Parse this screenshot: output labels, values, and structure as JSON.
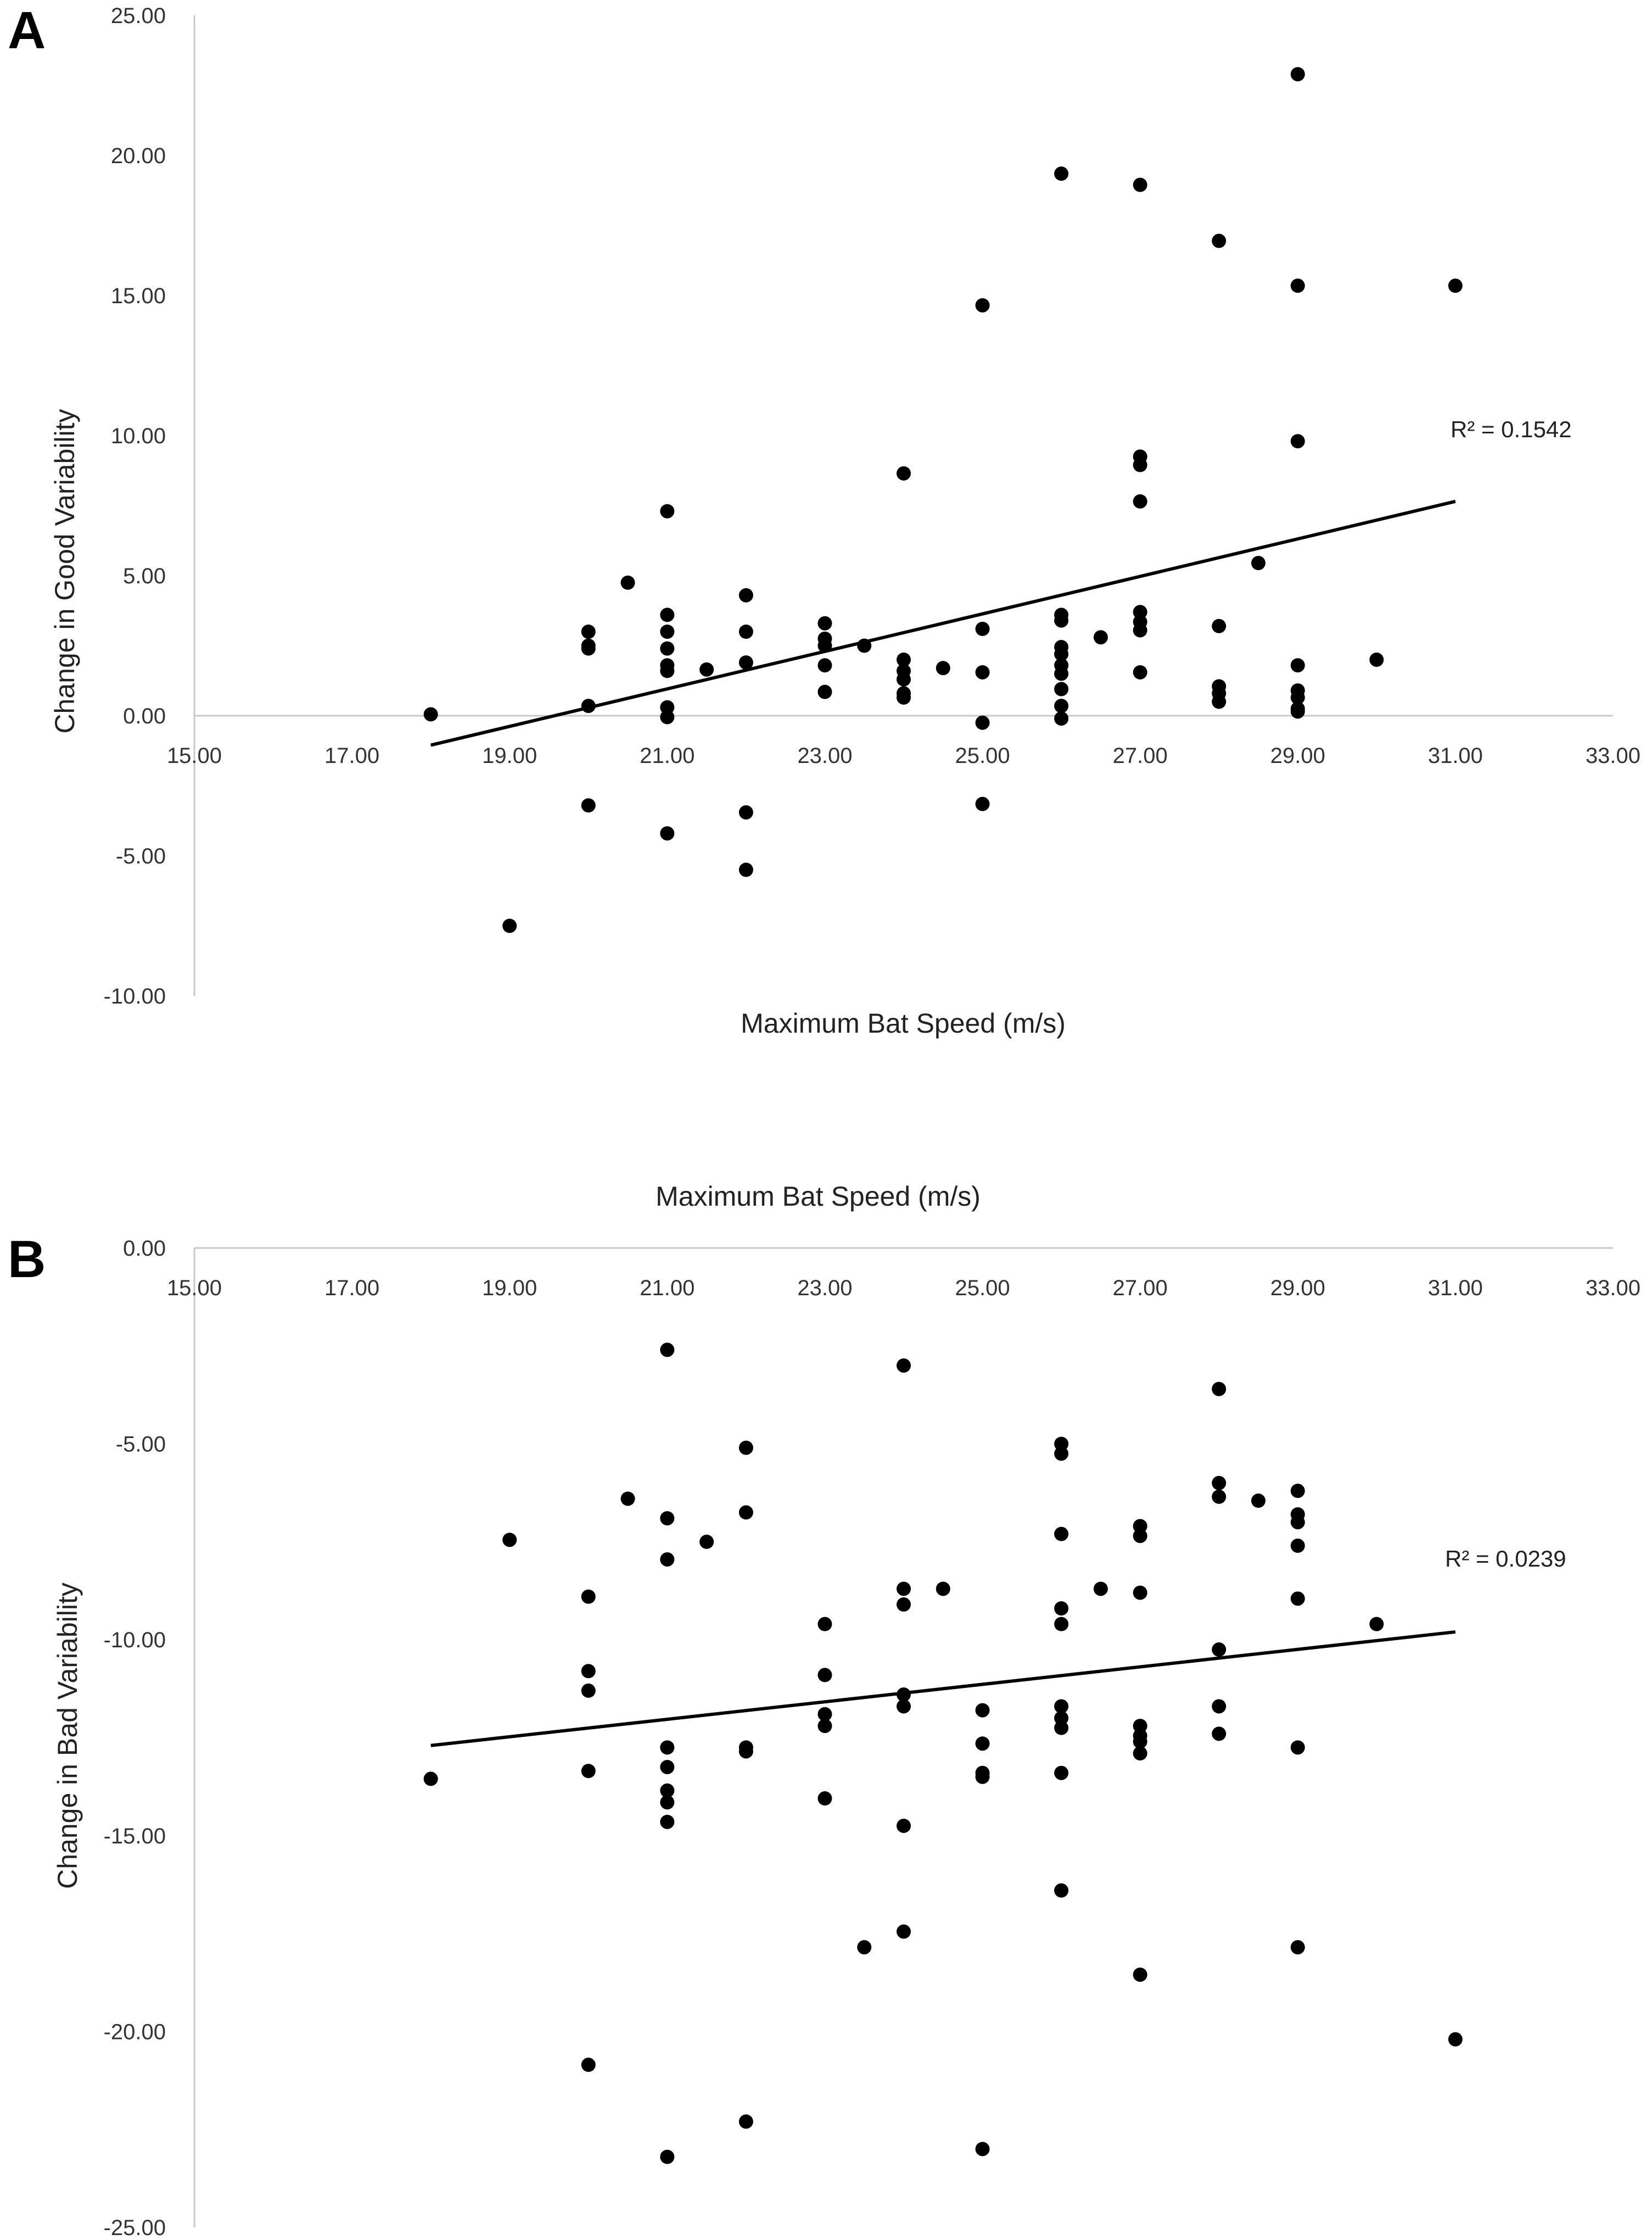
{
  "chart_data": [
    {
      "panel": "A",
      "type": "scatter",
      "xlabel": "Maximum Bat Speed (m/s)",
      "ylabel": "Change in Good Variability",
      "xlim": [
        15,
        33
      ],
      "ylim": [
        -10,
        25
      ],
      "x_ticks": [
        "15.00",
        "17.00",
        "19.00",
        "21.00",
        "23.00",
        "25.00",
        "27.00",
        "29.00",
        "31.00",
        "33.00"
      ],
      "y_ticks": [
        "25.00",
        "20.00",
        "15.00",
        "10.00",
        "5.00",
        "0.00",
        "-5.00",
        "-10.00"
      ],
      "r2_label": "R² = 0.1542",
      "trendline": {
        "x": [
          18.0,
          31.0
        ],
        "y": [
          -1.05,
          7.65
        ]
      },
      "points": [
        [
          18.0,
          0.05
        ],
        [
          19.0,
          -7.5
        ],
        [
          20.0,
          3.0
        ],
        [
          20.0,
          2.5
        ],
        [
          20.0,
          2.4
        ],
        [
          20.0,
          0.35
        ],
        [
          20.0,
          -3.2
        ],
        [
          20.5,
          4.75
        ],
        [
          21.0,
          7.3
        ],
        [
          21.0,
          3.6
        ],
        [
          21.0,
          3.0
        ],
        [
          21.0,
          2.4
        ],
        [
          21.0,
          1.8
        ],
        [
          21.0,
          1.6
        ],
        [
          21.0,
          0.3
        ],
        [
          21.0,
          -0.05
        ],
        [
          21.0,
          -4.2
        ],
        [
          21.5,
          1.65
        ],
        [
          22.0,
          4.3
        ],
        [
          22.0,
          3.0
        ],
        [
          22.0,
          1.9
        ],
        [
          22.0,
          -3.45
        ],
        [
          22.0,
          -5.5
        ],
        [
          23.0,
          3.3
        ],
        [
          23.0,
          2.75
        ],
        [
          23.0,
          2.5
        ],
        [
          23.0,
          1.8
        ],
        [
          23.0,
          0.85
        ],
        [
          23.5,
          2.5
        ],
        [
          24.0,
          8.65
        ],
        [
          24.0,
          2.0
        ],
        [
          24.0,
          1.6
        ],
        [
          24.0,
          1.3
        ],
        [
          24.0,
          0.8
        ],
        [
          24.0,
          0.65
        ],
        [
          24.5,
          1.7
        ],
        [
          25.0,
          14.65
        ],
        [
          25.0,
          3.1
        ],
        [
          25.0,
          1.55
        ],
        [
          25.0,
          -0.25
        ],
        [
          25.0,
          -3.15
        ],
        [
          26.0,
          19.35
        ],
        [
          26.0,
          3.6
        ],
        [
          26.0,
          3.4
        ],
        [
          26.0,
          2.45
        ],
        [
          26.0,
          2.2
        ],
        [
          26.0,
          1.8
        ],
        [
          26.0,
          1.5
        ],
        [
          26.0,
          0.95
        ],
        [
          26.0,
          0.35
        ],
        [
          26.0,
          -0.1
        ],
        [
          26.5,
          2.8
        ],
        [
          27.0,
          18.95
        ],
        [
          27.0,
          9.25
        ],
        [
          27.0,
          8.95
        ],
        [
          27.0,
          7.65
        ],
        [
          27.0,
          3.7
        ],
        [
          27.0,
          3.35
        ],
        [
          27.0,
          3.05
        ],
        [
          27.0,
          1.55
        ],
        [
          28.0,
          16.95
        ],
        [
          28.0,
          3.2
        ],
        [
          28.0,
          1.05
        ],
        [
          28.0,
          0.8
        ],
        [
          28.0,
          0.5
        ],
        [
          28.5,
          5.45
        ],
        [
          29.0,
          22.9
        ],
        [
          29.0,
          15.35
        ],
        [
          29.0,
          9.8
        ],
        [
          29.0,
          1.8
        ],
        [
          29.0,
          0.9
        ],
        [
          29.0,
          0.65
        ],
        [
          29.0,
          0.25
        ],
        [
          29.0,
          0.15
        ],
        [
          30.0,
          2.0
        ],
        [
          31.0,
          15.35
        ]
      ]
    },
    {
      "panel": "B",
      "type": "scatter",
      "xlabel": "Maximum Bat Speed (m/s)",
      "ylabel": "Change in Bad Variability",
      "xlim": [
        15,
        33
      ],
      "ylim": [
        -25,
        0
      ],
      "x_ticks": [
        "15.00",
        "17.00",
        "19.00",
        "21.00",
        "23.00",
        "25.00",
        "27.00",
        "29.00",
        "31.00",
        "33.00"
      ],
      "y_ticks": [
        "0.00",
        "-5.00",
        "-10.00",
        "-15.00",
        "-20.00",
        "-25.00"
      ],
      "r2_label": "R² = 0.0239",
      "trendline": {
        "x": [
          18.0,
          31.0
        ],
        "y": [
          -12.7,
          -9.8
        ]
      },
      "points": [
        [
          18.0,
          -13.55
        ],
        [
          19.0,
          -7.45
        ],
        [
          20.0,
          -8.9
        ],
        [
          20.0,
          -10.8
        ],
        [
          20.0,
          -11.3
        ],
        [
          20.0,
          -13.35
        ],
        [
          20.0,
          -20.85
        ],
        [
          20.5,
          -6.4
        ],
        [
          21.0,
          -2.6
        ],
        [
          21.0,
          -6.9
        ],
        [
          21.0,
          -7.95
        ],
        [
          21.0,
          -12.75
        ],
        [
          21.0,
          -13.25
        ],
        [
          21.0,
          -13.85
        ],
        [
          21.0,
          -14.15
        ],
        [
          21.0,
          -14.65
        ],
        [
          21.0,
          -23.2
        ],
        [
          21.5,
          -7.5
        ],
        [
          22.0,
          -5.1
        ],
        [
          22.0,
          -6.75
        ],
        [
          22.0,
          -12.75
        ],
        [
          22.0,
          -12.85
        ],
        [
          22.0,
          -22.3
        ],
        [
          23.0,
          -9.6
        ],
        [
          23.0,
          -10.9
        ],
        [
          23.0,
          -11.9
        ],
        [
          23.0,
          -12.2
        ],
        [
          23.0,
          -14.05
        ],
        [
          23.5,
          -17.85
        ],
        [
          24.0,
          -3.0
        ],
        [
          24.0,
          -8.7
        ],
        [
          24.0,
          -9.1
        ],
        [
          24.0,
          -11.4
        ],
        [
          24.0,
          -11.7
        ],
        [
          24.0,
          -14.75
        ],
        [
          24.0,
          -17.45
        ],
        [
          24.5,
          -8.7
        ],
        [
          25.0,
          -11.8
        ],
        [
          25.0,
          -12.65
        ],
        [
          25.0,
          -13.4
        ],
        [
          25.0,
          -13.5
        ],
        [
          25.0,
          -23.0
        ],
        [
          26.0,
          -5.0
        ],
        [
          26.0,
          -5.25
        ],
        [
          26.0,
          -7.3
        ],
        [
          26.0,
          -9.2
        ],
        [
          26.0,
          -9.6
        ],
        [
          26.0,
          -11.7
        ],
        [
          26.0,
          -12.0
        ],
        [
          26.0,
          -12.25
        ],
        [
          26.0,
          -13.4
        ],
        [
          26.0,
          -16.4
        ],
        [
          26.5,
          -8.7
        ],
        [
          27.0,
          -7.1
        ],
        [
          27.0,
          -7.35
        ],
        [
          27.0,
          -8.8
        ],
        [
          27.0,
          -12.2
        ],
        [
          27.0,
          -12.45
        ],
        [
          27.0,
          -12.6
        ],
        [
          27.0,
          -12.9
        ],
        [
          27.0,
          -18.55
        ],
        [
          28.0,
          -3.6
        ],
        [
          28.0,
          -6.0
        ],
        [
          28.0,
          -6.35
        ],
        [
          28.0,
          -10.25
        ],
        [
          28.0,
          -11.7
        ],
        [
          28.0,
          -12.4
        ],
        [
          28.5,
          -6.45
        ],
        [
          29.0,
          -6.2
        ],
        [
          29.0,
          -6.8
        ],
        [
          29.0,
          -7.0
        ],
        [
          29.0,
          -7.6
        ],
        [
          29.0,
          -8.95
        ],
        [
          29.0,
          -12.75
        ],
        [
          29.0,
          -17.85
        ],
        [
          30.0,
          -9.6
        ],
        [
          31.0,
          -20.2
        ]
      ]
    }
  ]
}
